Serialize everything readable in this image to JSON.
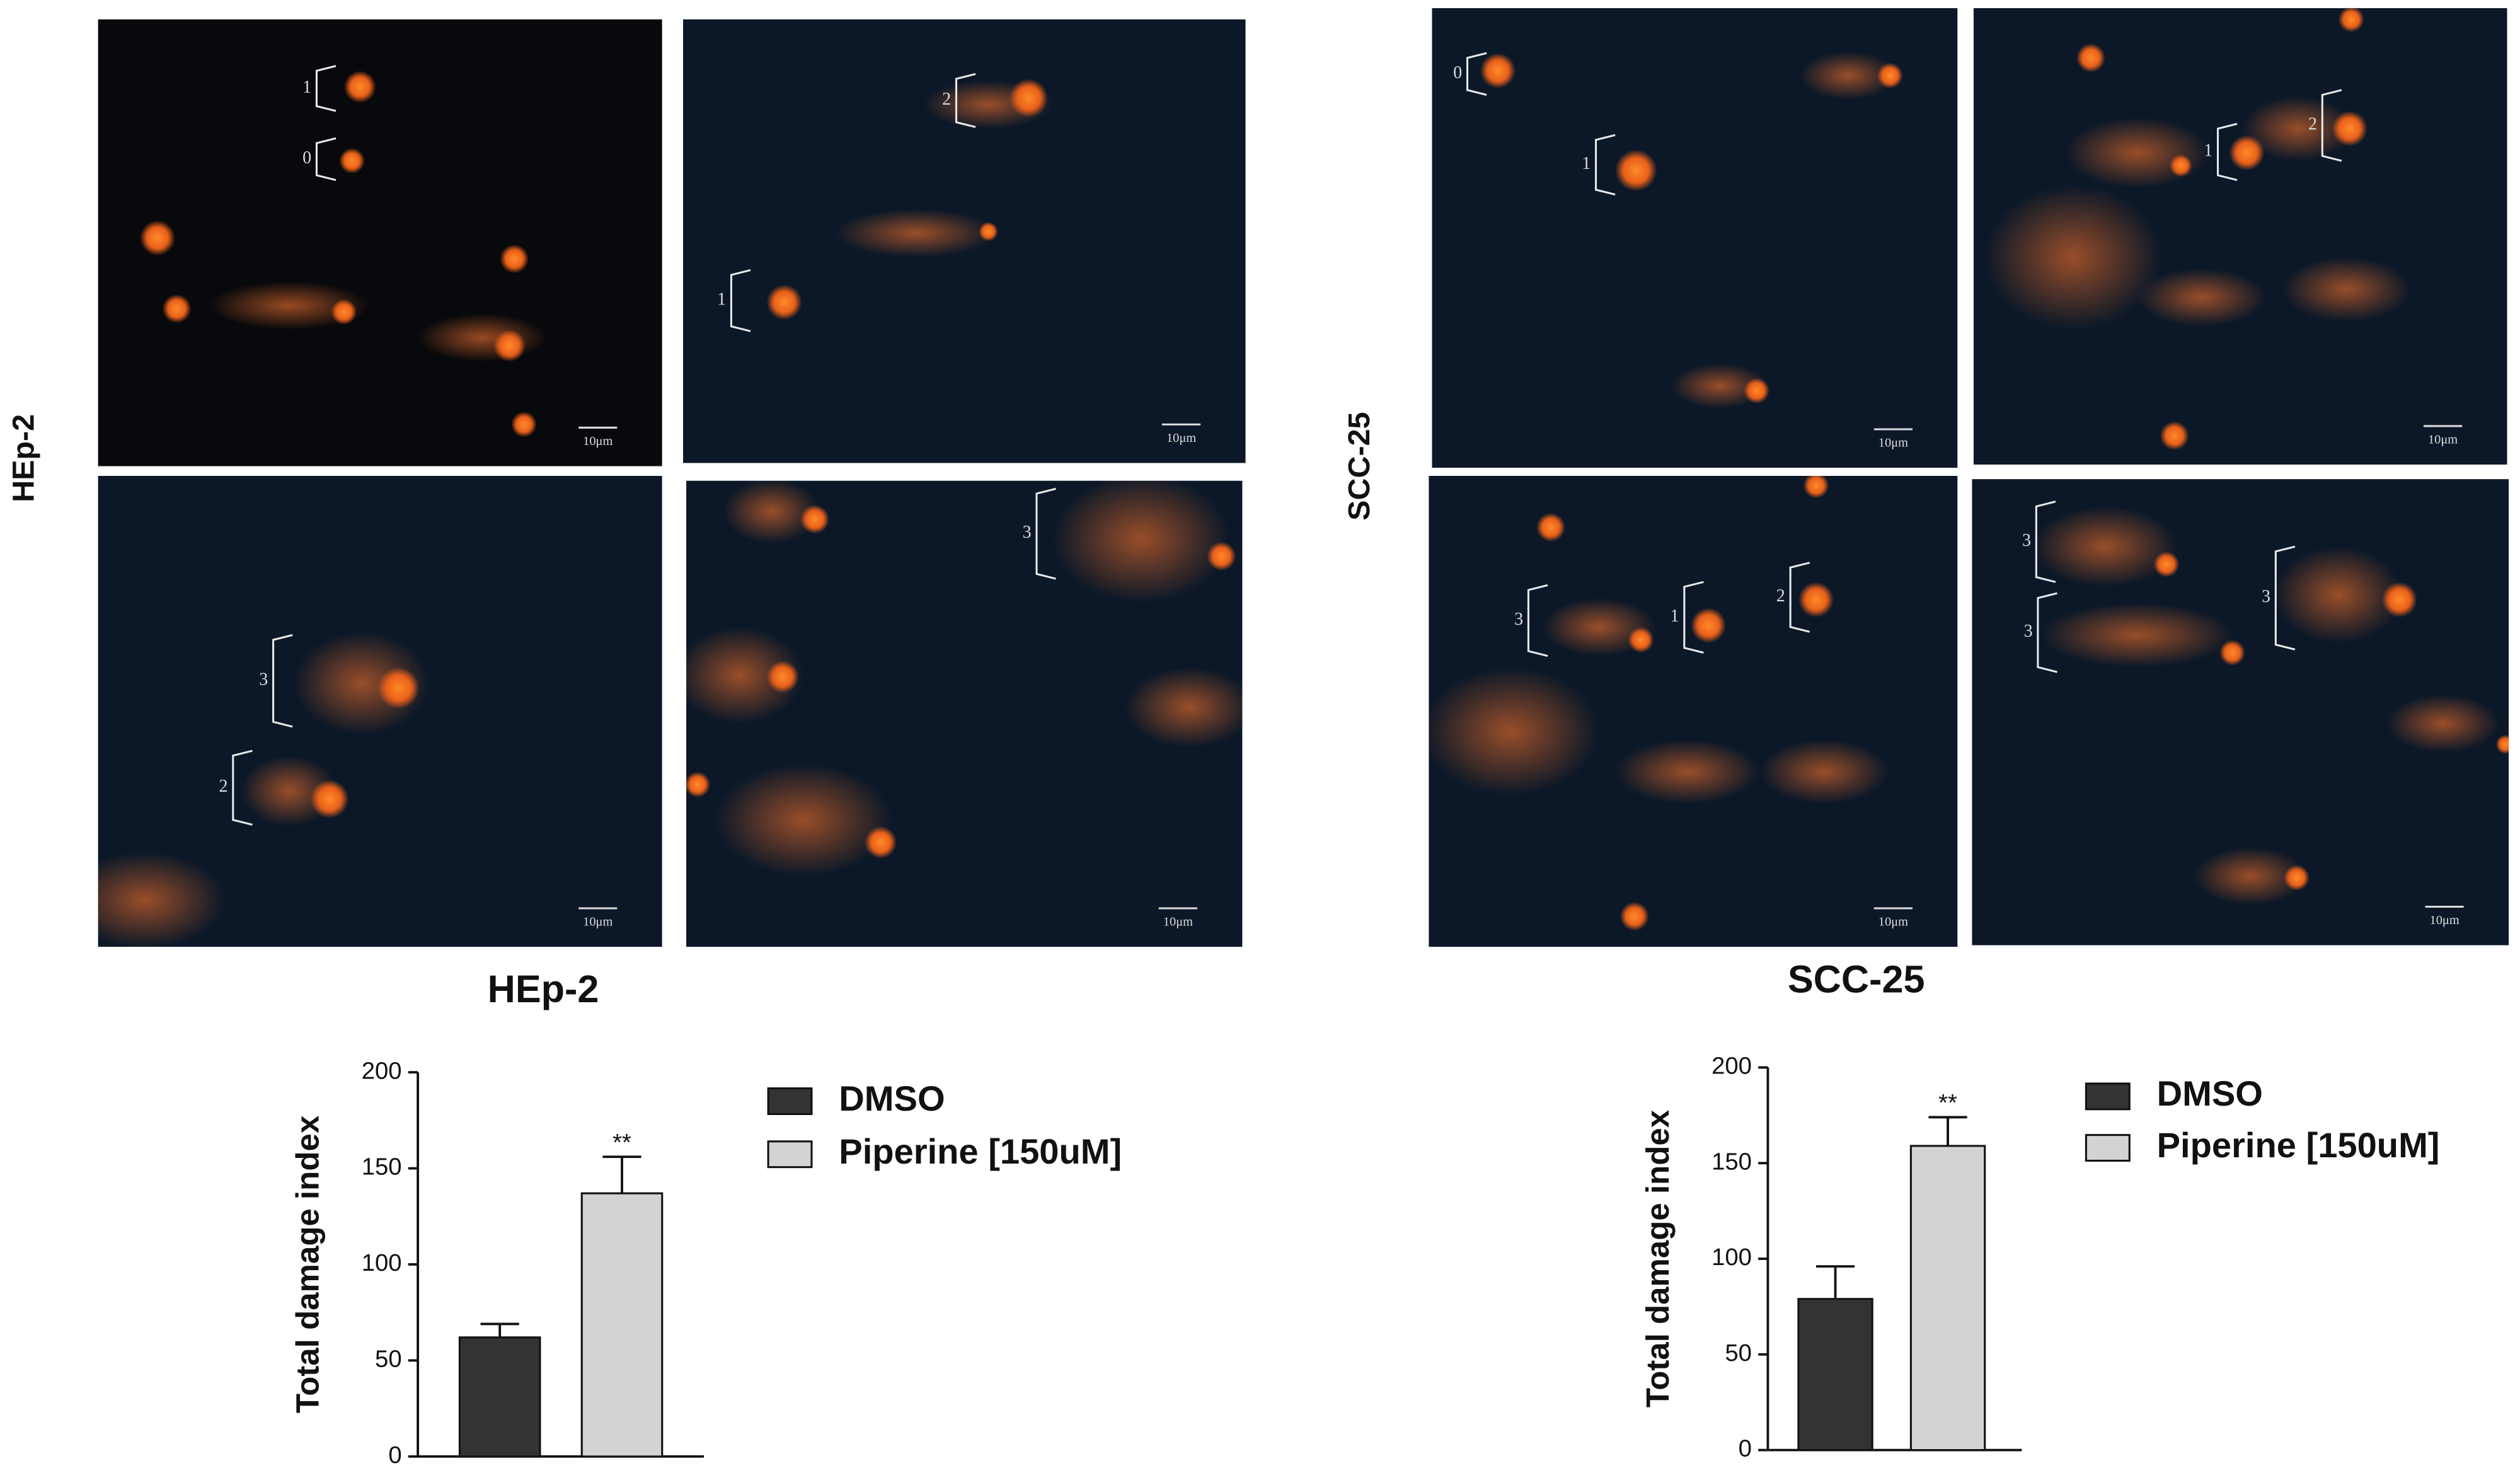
{
  "figure": {
    "row_labels": [
      "HEp-2",
      "SCC-25"
    ],
    "panels": [
      {
        "labels": [
          "1",
          "0"
        ],
        "scale_bar": "10μm"
      },
      {
        "labels": [
          "2",
          "1"
        ],
        "scale_bar": "10μm"
      },
      {
        "labels": [
          "3",
          "2"
        ],
        "scale_bar": "10μm"
      },
      {
        "labels": [
          "3"
        ],
        "scale_bar": "10μm"
      },
      {
        "labels": [
          "0",
          "1"
        ],
        "scale_bar": "10μm"
      },
      {
        "labels": [
          "1",
          "2"
        ],
        "scale_bar": "10μm"
      },
      {
        "labels": [
          "3",
          "1",
          "2"
        ],
        "scale_bar": "10μm"
      },
      {
        "labels": [
          "3",
          "3",
          "3"
        ],
        "scale_bar": "10μm"
      }
    ]
  },
  "chart_data": [
    {
      "type": "bar",
      "title": "HEp-2",
      "y_label": "Total damage index",
      "ylim": [
        0,
        200
      ],
      "yticks": [
        0,
        50,
        100,
        150,
        200
      ],
      "series": [
        {
          "name": "DMSO",
          "color": "#333333",
          "values": [
            62
          ],
          "errors": [
            7
          ]
        },
        {
          "name": "Piperine [150uM]",
          "color": "#d3d3d3",
          "values": [
            137
          ],
          "errors": [
            19
          ],
          "annotation": "**"
        }
      ]
    },
    {
      "type": "bar",
      "title": "SCC-25",
      "y_label": "Total damage index",
      "ylim": [
        0,
        200
      ],
      "yticks": [
        0,
        50,
        100,
        150,
        200
      ],
      "series": [
        {
          "name": "DMSO",
          "color": "#333333",
          "values": [
            79
          ],
          "errors": [
            17
          ]
        },
        {
          "name": "Piperine [150uM]",
          "color": "#d3d3d3",
          "values": [
            159
          ],
          "errors": [
            15
          ],
          "annotation": "**"
        }
      ]
    }
  ]
}
